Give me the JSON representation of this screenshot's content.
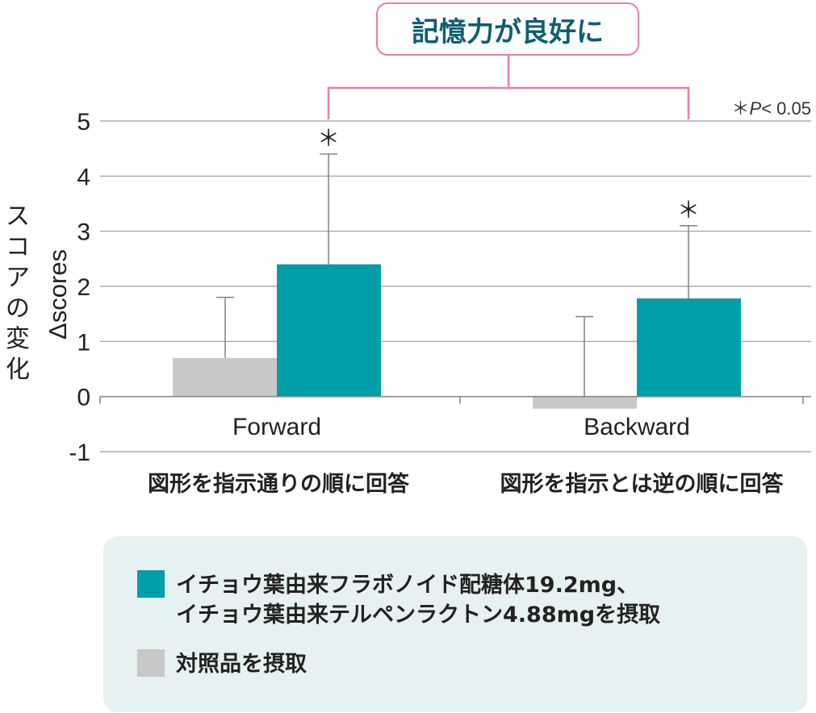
{
  "chart_data": {
    "type": "bar",
    "callout": "記憶力が良好に",
    "significance_note": {
      "symbol": "＊",
      "p": "P",
      "text": "< 0.05"
    },
    "ylabel_jp": "スコアの変化",
    "ylabel": "Δscores",
    "ylim": [
      -1,
      5
    ],
    "yticks": [
      "-1",
      "0",
      "1",
      "2",
      "3",
      "4",
      "5"
    ],
    "grid": true,
    "categories": [
      "Forward",
      "Backward"
    ],
    "category_descriptions": [
      "図形を指示通りの順に回答",
      "図形を指示とは逆の順に回答"
    ],
    "series": [
      {
        "name": "対照品を摂取",
        "color": "#c8c8c8",
        "values": [
          0.7,
          -0.22
        ],
        "error_upper": [
          1.8,
          1.45
        ]
      },
      {
        "name": "イチョウ葉由来フラボノイド配糖体19.2mg、イチョウ葉由来テルペンラクトン4.88mgを摂取",
        "color": "#009ea8",
        "values": [
          2.4,
          1.78
        ],
        "error_upper": [
          4.4,
          3.1
        ]
      }
    ],
    "significance_markers": [
      "＊",
      "＊"
    ]
  },
  "legend": {
    "position": "bottom",
    "items": [
      {
        "color": "#009ea8",
        "lines": [
          "イチョウ葉由来フラボノイド配糖体19.2mg、",
          "イチョウ葉由来テルペンラクトン4.88mgを摂取"
        ]
      },
      {
        "color": "#c8c8c8",
        "lines": [
          "対照品を摂取"
        ]
      }
    ]
  },
  "colors": {
    "accent_pink": "#e77db3",
    "title_teal": "#0f5e6e",
    "legend_bg": "#e6f1f1",
    "grid": "#9a9a9a"
  }
}
